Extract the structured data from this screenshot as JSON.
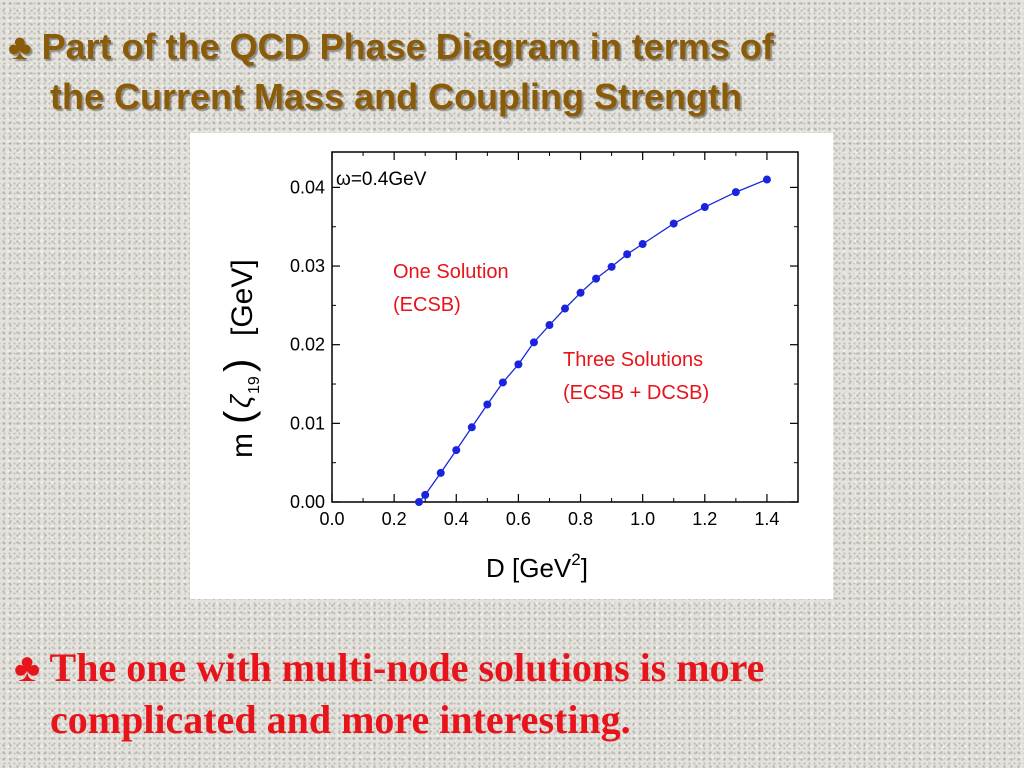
{
  "title": {
    "bullet": "♣",
    "line1": "Part of the QCD Phase Diagram in terms of",
    "line2": "the Current Mass and Coupling Strength"
  },
  "bottom": {
    "bullet": "♣",
    "line1": "The one with multi-node solutions is more",
    "line2": "complicated and more interesting."
  },
  "colors": {
    "title": "#8a5b08",
    "bottom_text": "#e8141b",
    "series": "#1a24e0",
    "annotation": "#e8141b"
  },
  "chart_data": {
    "type": "line",
    "x": [
      0.28,
      0.3,
      0.35,
      0.4,
      0.45,
      0.5,
      0.55,
      0.6,
      0.65,
      0.7,
      0.75,
      0.8,
      0.85,
      0.9,
      0.95,
      1.0,
      1.1,
      1.2,
      1.3,
      1.4
    ],
    "series": [
      {
        "values": [
          0.0,
          0.0009,
          0.0037,
          0.0066,
          0.0095,
          0.0124,
          0.0152,
          0.0175,
          0.0203,
          0.0225,
          0.0246,
          0.0266,
          0.0284,
          0.0299,
          0.0315,
          0.0328,
          0.0354,
          0.0375,
          0.0394,
          0.041
        ]
      }
    ],
    "xlim": [
      0.0,
      1.5
    ],
    "ylim": [
      0.0,
      0.0445
    ],
    "xticks": [
      "0.0",
      "0.2",
      "0.4",
      "0.6",
      "0.8",
      "1.0",
      "1.2",
      "1.4"
    ],
    "yticks": [
      "0.00",
      "0.01",
      "0.02",
      "0.03",
      "0.04"
    ],
    "xlabel": "D   [GeV",
    "xlabel_sup": "2",
    "xlabel_end": "]",
    "ylabel_m": "m",
    "ylabel_zeta": "ζ",
    "ylabel_sub": "19",
    "ylabel_unit": "[GeV]",
    "inset_label": "ω=0.4GeV",
    "annotations": [
      {
        "lines": [
          "One Solution",
          "(ECSB)"
        ]
      },
      {
        "lines": [
          "Three Solutions",
          "(ECSB + DCSB)"
        ]
      }
    ],
    "grid": false,
    "legend": "none"
  }
}
